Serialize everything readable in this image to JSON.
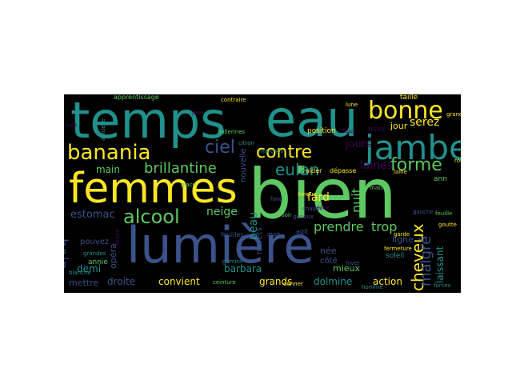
{
  "background": "#000000",
  "page_background": "#ffffff",
  "palette": [
    "#440154",
    "#3b528b",
    "#21918c",
    "#5ec962",
    "#fde725"
  ],
  "words": [
    {
      "text": "lumière"
    },
    {
      "text": "bien"
    },
    {
      "text": "temps"
    },
    {
      "text": "eau"
    },
    {
      "text": "femmes"
    },
    {
      "text": "jambe"
    },
    {
      "text": "bonne"
    },
    {
      "text": "banania"
    },
    {
      "text": "alcool"
    },
    {
      "text": "brillantine"
    },
    {
      "text": "ciel"
    },
    {
      "text": "contre"
    },
    {
      "text": "forme"
    },
    {
      "text": "eulan"
    },
    {
      "text": "nuit"
    },
    {
      "text": "cheveux"
    },
    {
      "text": "malgré"
    },
    {
      "text": "laines"
    },
    {
      "text": "jours"
    },
    {
      "text": "serez"
    },
    {
      "text": "jour"
    },
    {
      "text": "prendre"
    },
    {
      "text": "trop"
    },
    {
      "text": "peau"
    },
    {
      "text": "fard"
    },
    {
      "text": "neige"
    },
    {
      "text": "estomac"
    },
    {
      "text": "main"
    },
    {
      "text": "demi"
    },
    {
      "text": "opéra"
    },
    {
      "text": "barbara"
    },
    {
      "text": "grands"
    },
    {
      "text": "dolmine"
    },
    {
      "text": "action"
    },
    {
      "text": "convient"
    },
    {
      "text": "droite"
    },
    {
      "text": "mettre"
    },
    {
      "text": "mieux"
    },
    {
      "text": "née"
    },
    {
      "text": "côté"
    },
    {
      "text": "laissant"
    },
    {
      "text": "ligne"
    },
    {
      "text": "soleil"
    },
    {
      "text": "nouvelle"
    },
    {
      "text": "navets"
    },
    {
      "text": "pouvez"
    },
    {
      "text": "annie"
    },
    {
      "text": "bain"
    },
    {
      "text": "tissu"
    },
    {
      "text": "position"
    },
    {
      "text": "taille"
    },
    {
      "text": "tour"
    },
    {
      "text": "agit"
    },
    {
      "text": "terre"
    },
    {
      "text": "aider"
    },
    {
      "text": "dépasse"
    },
    {
      "text": "chaude"
    },
    {
      "text": "fond"
    },
    {
      "text": "feuilles"
    },
    {
      "text": "gauche"
    },
    {
      "text": "mais"
    },
    {
      "text": "hiver"
    },
    {
      "text": "genoux"
    },
    {
      "text": "apprentissage"
    },
    {
      "text": "ballerines"
    },
    {
      "text": "ceinture"
    },
    {
      "text": "marches"
    },
    {
      "text": "citron"
    },
    {
      "text": "gamins"
    },
    {
      "text": "blanche"
    },
    {
      "text": "grandes"
    },
    {
      "text": "actuelle"
    },
    {
      "text": "goutte"
    },
    {
      "text": "garde"
    },
    {
      "text": "donner"
    },
    {
      "text": "fermeture"
    },
    {
      "text": "longue"
    },
    {
      "text": "laine"
    },
    {
      "text": "grand"
    },
    {
      "text": "faut"
    },
    {
      "text": "jeux"
    },
    {
      "text": "année"
    },
    {
      "text": "feuille"
    },
    {
      "text": "soir"
    },
    {
      "text": "homme"
    },
    {
      "text": "forces"
    },
    {
      "text": "lune"
    },
    {
      "text": "contraire"
    },
    {
      "text": "rouge"
    },
    {
      "text": "place"
    },
    {
      "text": "matin"
    },
    {
      "text": "ann"
    }
  ]
}
